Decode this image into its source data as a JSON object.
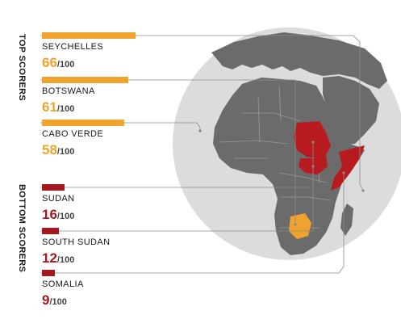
{
  "groups": [
    {
      "label": "TOP SCORERS",
      "color": "#f0a22e",
      "entries": [
        {
          "country": "SEYCHELLES",
          "score": "66",
          "out_of": "/100",
          "value": 66
        },
        {
          "country": "BOTSWANA",
          "score": "61",
          "out_of": "/100",
          "value": 61
        },
        {
          "country": "CABO VERDE",
          "score": "58",
          "out_of": "/100",
          "value": 58
        }
      ]
    },
    {
      "label": "BOTTOM SCORERS",
      "color": "#a2191f",
      "entries": [
        {
          "country": "SUDAN",
          "score": "16",
          "out_of": "/100",
          "value": 16
        },
        {
          "country": "SOUTH SUDAN",
          "score": "12",
          "out_of": "/100",
          "value": 12
        },
        {
          "country": "SOMALIA",
          "score": "9",
          "out_of": "/100",
          "value": 9
        }
      ]
    }
  ],
  "map": {
    "highlight_top": "Botswana",
    "highlight_bottom": [
      "Sudan",
      "South Sudan",
      "Somalia"
    ],
    "land_color": "#6b6b6b",
    "globe_color": "#dcdcdc",
    "border_color": "#9a9a9a"
  }
}
